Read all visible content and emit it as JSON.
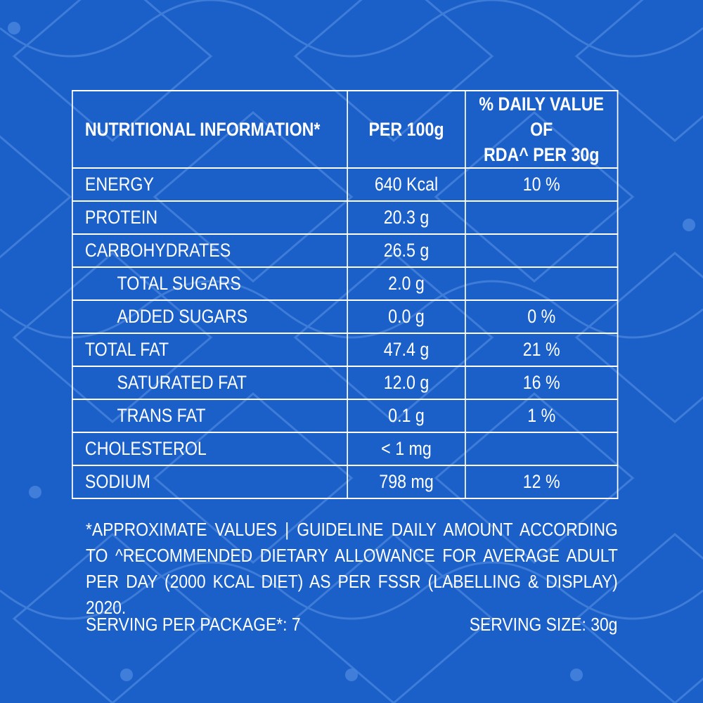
{
  "colors": {
    "background": "#1b5fc9",
    "pattern": "#4a86dd",
    "text": "#ffffff"
  },
  "table": {
    "headers": {
      "nutrient": "NUTRITIONAL INFORMATION*",
      "per100": "PER 100g",
      "dv_line1": "% DAILY VALUE OF",
      "dv_line2": "RDA^ PER 30g"
    },
    "rows": [
      {
        "label": "ENERGY",
        "value": "640 Kcal",
        "dv": "10 %"
      },
      {
        "label": "PROTEIN",
        "value": "20.3 g",
        "dv": ""
      },
      {
        "label": "CARBOHYDRATES",
        "value": "26.5 g",
        "dv": ""
      },
      {
        "label": "TOTAL SUGARS",
        "value": "2.0 g",
        "dv": ""
      },
      {
        "label": "ADDED SUGARS",
        "value": "0.0 g",
        "dv": "0 %"
      },
      {
        "label": "TOTAL FAT",
        "value": "47.4 g",
        "dv": "21 %"
      },
      {
        "label": "SATURATED FAT",
        "value": "12.0 g",
        "dv": "16 %"
      },
      {
        "label": "TRANS FAT",
        "value": "0.1 g",
        "dv": "1 %"
      },
      {
        "label": "CHOLESTEROL",
        "value": "< 1 mg",
        "dv": ""
      },
      {
        "label": "SODIUM",
        "value": "798 mg",
        "dv": "12 %"
      }
    ]
  },
  "footnote": "*APPROXIMATE VALUES | GUIDELINE DAILY AMOUNT ACCORDING TO ^RECOMMENDED DIETARY ALLOWANCE FOR AVERAGE ADULT PER DAY (2000 KCAL DIET) AS PER FSSR (LABELLING & DISPLAY) 2020.",
  "serving_per_package": "SERVING PER PACKAGE*: 7",
  "serving_size": "SERVING SIZE: 30g"
}
